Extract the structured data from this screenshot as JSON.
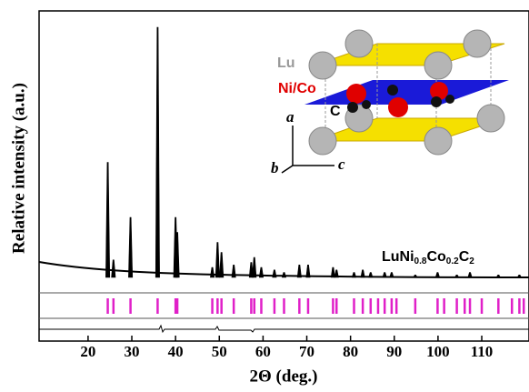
{
  "chart_data": {
    "type": "xrd",
    "x_label": "2Θ (deg.)",
    "y_label": "Relative intensity (a.u.)",
    "annotation": [
      "LuNi",
      "0.8",
      "Co",
      "0.2",
      "C",
      "2"
    ],
    "inset_labels": [
      "Lu",
      "Ni/Co",
      "C",
      "a",
      "b",
      "c"
    ],
    "xlim": [
      8.8,
      120.8
    ],
    "xticks": [
      20,
      30,
      40,
      50,
      60,
      70,
      80,
      90,
      100,
      110
    ],
    "ylim": [
      0,
      100
    ],
    "peak_color": "#000",
    "peaks": {
      "x": [
        24.5,
        25.8,
        29.7,
        35.9,
        40.0,
        40.4,
        48.4,
        49.6,
        50.5,
        53.3,
        57.3,
        58.0,
        59.6,
        62.6,
        64.8,
        68.3,
        70.3,
        76.0,
        76.8,
        80.8,
        82.8,
        84.6,
        87.8,
        89.4,
        94.8,
        99.9,
        104.3,
        107.3,
        113.8,
        118.6
      ],
      "values": [
        46,
        7,
        24,
        100,
        24,
        18,
        4,
        14,
        10,
        5,
        6,
        8,
        4,
        3,
        2,
        5,
        5,
        4,
        3,
        2,
        3,
        2,
        2,
        2,
        1,
        2,
        1,
        2,
        1,
        1
      ]
    },
    "bragg_color": "#e020c8",
    "bragg_positions": [
      24.5,
      25.8,
      29.7,
      35.9,
      40.0,
      40.4,
      48.4,
      49.6,
      50.5,
      53.3,
      57.3,
      58.0,
      59.6,
      62.6,
      64.8,
      68.3,
      70.3,
      76.0,
      76.8,
      80.8,
      82.8,
      84.6,
      86.3,
      87.8,
      89.4,
      90.5,
      94.8,
      99.9,
      101.4,
      104.3,
      106.1,
      107.3,
      110.0,
      113.8,
      116.9,
      118.6,
      119.6
    ]
  }
}
